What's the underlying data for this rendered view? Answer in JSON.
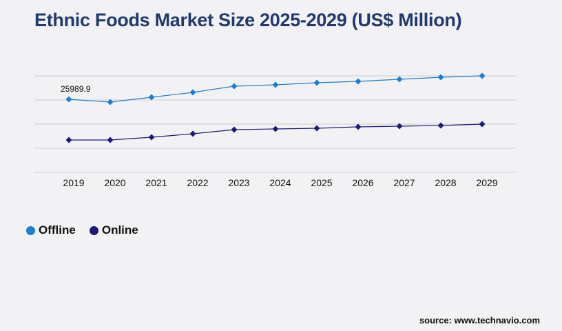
{
  "chart_data": {
    "type": "line",
    "title": "Ethnic Foods Market Size 2025-2029 (US$ Million)",
    "categories": [
      "2019",
      "2020",
      "2021",
      "2022",
      "2023",
      "2024",
      "2025",
      "2026",
      "2027",
      "2028",
      "2029"
    ],
    "series": [
      {
        "name": "Offline",
        "color": "#1a7fd4",
        "values": [
          25989.9,
          25010,
          26727,
          28443,
          30650,
          31140,
          31876,
          32366,
          33102,
          33838,
          34328
        ]
      },
      {
        "name": "Online",
        "color": "#1c1a7a",
        "values": [
          11524,
          11524,
          12505,
          13731,
          15202,
          15448,
          15693,
          16183,
          16428,
          16674,
          17164
        ]
      }
    ],
    "data_labels": [
      {
        "series": "Offline",
        "category": "2019",
        "text": "25989.9"
      }
    ],
    "ylim": [
      0,
      42915
    ],
    "grid": true,
    "legend": "bottom-left"
  },
  "source": "source: www.technavio.com"
}
